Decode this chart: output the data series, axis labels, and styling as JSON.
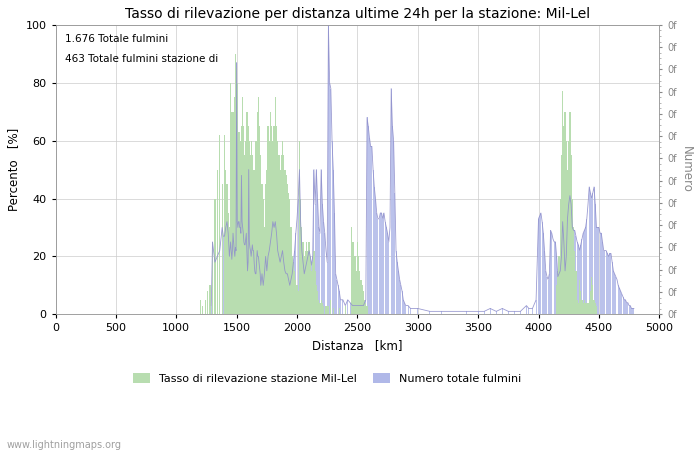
{
  "title": "Tasso di rilevazione per distanza ultime 24h per la stazione: Mil-Lel",
  "xlabel": "Distanza   [km]",
  "ylabel_left": "Percento   [%]",
  "ylabel_right": "Numero",
  "annotation_line1": "1.676 Totale fulmini",
  "annotation_line2": "463 Totale fulmini stazione di",
  "watermark": "www.lightningmaps.org",
  "xlim": [
    0,
    5000
  ],
  "ylim_left": [
    0,
    100
  ],
  "xticks": [
    0,
    500,
    1000,
    1500,
    2000,
    2500,
    3000,
    3500,
    4000,
    4500,
    5000
  ],
  "yticks_left": [
    0,
    20,
    40,
    60,
    80,
    100
  ],
  "legend_green": "Tasso di rilevazione stazione Mil-Lel",
  "legend_blue": "Numero totale fulmini",
  "green_color": "#b8ddb0",
  "blue_color": "#b0b8e8",
  "blue_line_color": "#9090cc",
  "background_color": "#ffffff",
  "grid_color": "#cccccc",
  "right_ytick_labels": [
    "0f",
    "0f",
    "0f",
    "0f",
    "0f",
    "0f",
    "0f",
    "0f",
    "0f",
    "0f",
    "0f",
    "0f",
    "0f",
    "0f"
  ],
  "green_bars": [
    [
      1200,
      5
    ],
    [
      1220,
      3
    ],
    [
      1240,
      5
    ],
    [
      1260,
      8
    ],
    [
      1280,
      10
    ],
    [
      1300,
      25
    ],
    [
      1320,
      40
    ],
    [
      1340,
      50
    ],
    [
      1360,
      62
    ],
    [
      1380,
      45
    ],
    [
      1400,
      62
    ],
    [
      1410,
      50
    ],
    [
      1420,
      45
    ],
    [
      1430,
      35
    ],
    [
      1440,
      30
    ],
    [
      1450,
      80
    ],
    [
      1460,
      70
    ],
    [
      1470,
      70
    ],
    [
      1480,
      75
    ],
    [
      1490,
      90
    ],
    [
      1495,
      85
    ],
    [
      1500,
      85
    ],
    [
      1505,
      80
    ],
    [
      1510,
      75
    ],
    [
      1515,
      63
    ],
    [
      1520,
      60
    ],
    [
      1525,
      63
    ],
    [
      1530,
      60
    ],
    [
      1535,
      55
    ],
    [
      1540,
      63
    ],
    [
      1545,
      65
    ],
    [
      1550,
      75
    ],
    [
      1555,
      65
    ],
    [
      1560,
      60
    ],
    [
      1565,
      55
    ],
    [
      1570,
      55
    ],
    [
      1575,
      60
    ],
    [
      1580,
      65
    ],
    [
      1585,
      70
    ],
    [
      1590,
      70
    ],
    [
      1595,
      65
    ],
    [
      1600,
      65
    ],
    [
      1605,
      60
    ],
    [
      1610,
      50
    ],
    [
      1615,
      55
    ],
    [
      1620,
      60
    ],
    [
      1625,
      55
    ],
    [
      1630,
      55
    ],
    [
      1635,
      50
    ],
    [
      1640,
      45
    ],
    [
      1645,
      48
    ],
    [
      1650,
      50
    ],
    [
      1655,
      55
    ],
    [
      1660,
      60
    ],
    [
      1665,
      55
    ],
    [
      1670,
      70
    ],
    [
      1675,
      65
    ],
    [
      1680,
      75
    ],
    [
      1685,
      65
    ],
    [
      1690,
      60
    ],
    [
      1695,
      55
    ],
    [
      1700,
      50
    ],
    [
      1710,
      45
    ],
    [
      1720,
      40
    ],
    [
      1730,
      30
    ],
    [
      1740,
      45
    ],
    [
      1750,
      50
    ],
    [
      1760,
      65
    ],
    [
      1770,
      60
    ],
    [
      1780,
      70
    ],
    [
      1790,
      65
    ],
    [
      1800,
      60
    ],
    [
      1810,
      65
    ],
    [
      1820,
      75
    ],
    [
      1830,
      65
    ],
    [
      1840,
      60
    ],
    [
      1850,
      55
    ],
    [
      1860,
      50
    ],
    [
      1870,
      55
    ],
    [
      1880,
      60
    ],
    [
      1890,
      55
    ],
    [
      1900,
      50
    ],
    [
      1910,
      48
    ],
    [
      1920,
      45
    ],
    [
      1930,
      42
    ],
    [
      1940,
      40
    ],
    [
      1950,
      30
    ],
    [
      1960,
      20
    ],
    [
      1970,
      18
    ],
    [
      1980,
      15
    ],
    [
      1990,
      12
    ],
    [
      2000,
      10
    ],
    [
      2010,
      8
    ],
    [
      2020,
      60
    ],
    [
      2030,
      40
    ],
    [
      2040,
      30
    ],
    [
      2050,
      25
    ],
    [
      2060,
      20
    ],
    [
      2070,
      22
    ],
    [
      2080,
      25
    ],
    [
      2090,
      22
    ],
    [
      2100,
      25
    ],
    [
      2110,
      20
    ],
    [
      2120,
      15
    ],
    [
      2130,
      18
    ],
    [
      2140,
      22
    ],
    [
      2150,
      15
    ],
    [
      2160,
      10
    ],
    [
      2170,
      8
    ],
    [
      2180,
      5
    ],
    [
      2190,
      4
    ],
    [
      2200,
      5
    ],
    [
      2210,
      4
    ],
    [
      2220,
      3
    ],
    [
      2240,
      3
    ],
    [
      2250,
      3
    ],
    [
      2260,
      3
    ],
    [
      2280,
      5
    ],
    [
      2300,
      2
    ],
    [
      2350,
      2
    ],
    [
      2400,
      3
    ],
    [
      2450,
      30
    ],
    [
      2460,
      25
    ],
    [
      2470,
      25
    ],
    [
      2480,
      20
    ],
    [
      2490,
      15
    ],
    [
      2500,
      25
    ],
    [
      2510,
      20
    ],
    [
      2520,
      15
    ],
    [
      2530,
      12
    ],
    [
      2540,
      10
    ],
    [
      2550,
      8
    ],
    [
      2560,
      5
    ],
    [
      2570,
      4
    ],
    [
      2580,
      3
    ],
    [
      4150,
      10
    ],
    [
      4160,
      15
    ],
    [
      4170,
      20
    ],
    [
      4180,
      40
    ],
    [
      4190,
      55
    ],
    [
      4200,
      77
    ],
    [
      4210,
      65
    ],
    [
      4220,
      70
    ],
    [
      4230,
      60
    ],
    [
      4240,
      50
    ],
    [
      4250,
      60
    ],
    [
      4260,
      70
    ],
    [
      4270,
      55
    ],
    [
      4280,
      40
    ],
    [
      4290,
      30
    ],
    [
      4300,
      22
    ],
    [
      4310,
      15
    ],
    [
      4320,
      5
    ],
    [
      4330,
      4
    ],
    [
      4340,
      12
    ],
    [
      4350,
      8
    ],
    [
      4360,
      5
    ],
    [
      4370,
      4
    ],
    [
      4380,
      5
    ],
    [
      4390,
      4
    ],
    [
      4400,
      4
    ],
    [
      4410,
      4
    ],
    [
      4420,
      5
    ],
    [
      4430,
      8
    ],
    [
      4440,
      13
    ],
    [
      4450,
      10
    ],
    [
      4460,
      5
    ],
    [
      4470,
      4
    ],
    [
      4480,
      3
    ]
  ],
  "blue_bars": [
    [
      1290,
      3
    ],
    [
      1300,
      25
    ],
    [
      1320,
      18
    ],
    [
      1340,
      20
    ],
    [
      1360,
      22
    ],
    [
      1380,
      30
    ],
    [
      1390,
      27
    ],
    [
      1400,
      27
    ],
    [
      1410,
      30
    ],
    [
      1420,
      32
    ],
    [
      1430,
      28
    ],
    [
      1440,
      20
    ],
    [
      1450,
      25
    ],
    [
      1460,
      19
    ],
    [
      1465,
      22
    ],
    [
      1470,
      28
    ],
    [
      1475,
      25
    ],
    [
      1480,
      22
    ],
    [
      1485,
      20
    ],
    [
      1490,
      23
    ],
    [
      1495,
      22
    ],
    [
      1500,
      87
    ],
    [
      1505,
      32
    ],
    [
      1510,
      30
    ],
    [
      1515,
      32
    ],
    [
      1520,
      32
    ],
    [
      1525,
      30
    ],
    [
      1530,
      30
    ],
    [
      1535,
      28
    ],
    [
      1540,
      48
    ],
    [
      1545,
      32
    ],
    [
      1550,
      30
    ],
    [
      1555,
      28
    ],
    [
      1560,
      25
    ],
    [
      1565,
      24
    ],
    [
      1570,
      24
    ],
    [
      1575,
      26
    ],
    [
      1580,
      28
    ],
    [
      1585,
      22
    ],
    [
      1590,
      15
    ],
    [
      1595,
      18
    ],
    [
      1600,
      50
    ],
    [
      1605,
      25
    ],
    [
      1610,
      23
    ],
    [
      1615,
      22
    ],
    [
      1620,
      20
    ],
    [
      1625,
      22
    ],
    [
      1630,
      24
    ],
    [
      1635,
      22
    ],
    [
      1640,
      22
    ],
    [
      1645,
      18
    ],
    [
      1650,
      15
    ],
    [
      1655,
      14
    ],
    [
      1660,
      14
    ],
    [
      1665,
      18
    ],
    [
      1670,
      22
    ],
    [
      1675,
      20
    ],
    [
      1680,
      20
    ],
    [
      1685,
      18
    ],
    [
      1690,
      16
    ],
    [
      1695,
      14
    ],
    [
      1700,
      10
    ],
    [
      1710,
      14
    ],
    [
      1720,
      10
    ],
    [
      1730,
      14
    ],
    [
      1740,
      20
    ],
    [
      1750,
      15
    ],
    [
      1760,
      20
    ],
    [
      1770,
      22
    ],
    [
      1780,
      25
    ],
    [
      1790,
      28
    ],
    [
      1800,
      32
    ],
    [
      1810,
      30
    ],
    [
      1820,
      32
    ],
    [
      1830,
      28
    ],
    [
      1840,
      22
    ],
    [
      1850,
      20
    ],
    [
      1860,
      18
    ],
    [
      1870,
      20
    ],
    [
      1880,
      22
    ],
    [
      1890,
      18
    ],
    [
      1900,
      15
    ],
    [
      1910,
      14
    ],
    [
      1920,
      14
    ],
    [
      1930,
      12
    ],
    [
      1940,
      10
    ],
    [
      1950,
      12
    ],
    [
      1960,
      14
    ],
    [
      1970,
      18
    ],
    [
      1980,
      22
    ],
    [
      1990,
      28
    ],
    [
      2000,
      33
    ],
    [
      2010,
      40
    ],
    [
      2020,
      50
    ],
    [
      2030,
      32
    ],
    [
      2040,
      22
    ],
    [
      2050,
      18
    ],
    [
      2060,
      14
    ],
    [
      2070,
      16
    ],
    [
      2080,
      18
    ],
    [
      2090,
      20
    ],
    [
      2100,
      22
    ],
    [
      2110,
      20
    ],
    [
      2120,
      17
    ],
    [
      2130,
      20
    ],
    [
      2140,
      50
    ],
    [
      2150,
      38
    ],
    [
      2160,
      50
    ],
    [
      2170,
      40
    ],
    [
      2180,
      30
    ],
    [
      2190,
      28
    ],
    [
      2200,
      50
    ],
    [
      2210,
      38
    ],
    [
      2220,
      32
    ],
    [
      2230,
      28
    ],
    [
      2240,
      22
    ],
    [
      2250,
      18
    ],
    [
      2260,
      100
    ],
    [
      2270,
      80
    ],
    [
      2280,
      78
    ],
    [
      2290,
      60
    ],
    [
      2300,
      50
    ],
    [
      2310,
      35
    ],
    [
      2320,
      14
    ],
    [
      2330,
      12
    ],
    [
      2340,
      10
    ],
    [
      2350,
      8
    ],
    [
      2360,
      5
    ],
    [
      2380,
      5
    ],
    [
      2400,
      3
    ],
    [
      2420,
      5
    ],
    [
      2440,
      4
    ],
    [
      2460,
      3
    ],
    [
      2480,
      3
    ],
    [
      2500,
      3
    ],
    [
      2550,
      3
    ],
    [
      2570,
      5
    ],
    [
      2580,
      68
    ],
    [
      2590,
      65
    ],
    [
      2600,
      61
    ],
    [
      2610,
      58
    ],
    [
      2620,
      58
    ],
    [
      2630,
      50
    ],
    [
      2640,
      44
    ],
    [
      2650,
      40
    ],
    [
      2660,
      35
    ],
    [
      2670,
      33
    ],
    [
      2680,
      33
    ],
    [
      2690,
      35
    ],
    [
      2700,
      35
    ],
    [
      2710,
      33
    ],
    [
      2720,
      35
    ],
    [
      2730,
      32
    ],
    [
      2740,
      30
    ],
    [
      2750,
      28
    ],
    [
      2760,
      25
    ],
    [
      2770,
      30
    ],
    [
      2780,
      78
    ],
    [
      2790,
      65
    ],
    [
      2800,
      60
    ],
    [
      2810,
      42
    ],
    [
      2820,
      22
    ],
    [
      2830,
      18
    ],
    [
      2840,
      15
    ],
    [
      2850,
      12
    ],
    [
      2860,
      10
    ],
    [
      2870,
      8
    ],
    [
      2880,
      5
    ],
    [
      2890,
      4
    ],
    [
      2900,
      3
    ],
    [
      2920,
      3
    ],
    [
      2940,
      2
    ],
    [
      3000,
      2
    ],
    [
      3100,
      1
    ],
    [
      3200,
      1
    ],
    [
      3300,
      1
    ],
    [
      3400,
      1
    ],
    [
      3500,
      1
    ],
    [
      3550,
      1
    ],
    [
      3600,
      2
    ],
    [
      3650,
      1
    ],
    [
      3700,
      2
    ],
    [
      3750,
      1
    ],
    [
      3800,
      1
    ],
    [
      3850,
      1
    ],
    [
      3900,
      3
    ],
    [
      3920,
      2
    ],
    [
      3950,
      2
    ],
    [
      3980,
      5
    ],
    [
      4000,
      33
    ],
    [
      4010,
      34
    ],
    [
      4020,
      35
    ],
    [
      4030,
      32
    ],
    [
      4040,
      28
    ],
    [
      4050,
      22
    ],
    [
      4060,
      15
    ],
    [
      4070,
      13
    ],
    [
      4080,
      12
    ],
    [
      4090,
      14
    ],
    [
      4100,
      29
    ],
    [
      4110,
      28
    ],
    [
      4120,
      26
    ],
    [
      4130,
      25
    ],
    [
      4140,
      25
    ],
    [
      4150,
      20
    ],
    [
      4160,
      13
    ],
    [
      4170,
      14
    ],
    [
      4180,
      15
    ],
    [
      4190,
      20
    ],
    [
      4200,
      32
    ],
    [
      4210,
      25
    ],
    [
      4220,
      15
    ],
    [
      4230,
      20
    ],
    [
      4240,
      33
    ],
    [
      4250,
      38
    ],
    [
      4260,
      41
    ],
    [
      4270,
      38
    ],
    [
      4280,
      30
    ],
    [
      4290,
      29
    ],
    [
      4300,
      29
    ],
    [
      4310,
      27
    ],
    [
      4320,
      25
    ],
    [
      4330,
      24
    ],
    [
      4340,
      22
    ],
    [
      4350,
      24
    ],
    [
      4360,
      26
    ],
    [
      4370,
      28
    ],
    [
      4380,
      29
    ],
    [
      4390,
      30
    ],
    [
      4400,
      33
    ],
    [
      4410,
      38
    ],
    [
      4420,
      44
    ],
    [
      4430,
      42
    ],
    [
      4440,
      40
    ],
    [
      4450,
      42
    ],
    [
      4460,
      44
    ],
    [
      4470,
      38
    ],
    [
      4480,
      30
    ],
    [
      4490,
      30
    ],
    [
      4500,
      30
    ],
    [
      4510,
      28
    ],
    [
      4520,
      28
    ],
    [
      4530,
      25
    ],
    [
      4540,
      22
    ],
    [
      4550,
      22
    ],
    [
      4560,
      22
    ],
    [
      4570,
      21
    ],
    [
      4580,
      20
    ],
    [
      4590,
      21
    ],
    [
      4600,
      21
    ],
    [
      4610,
      18
    ],
    [
      4620,
      15
    ],
    [
      4630,
      14
    ],
    [
      4640,
      13
    ],
    [
      4650,
      12
    ],
    [
      4660,
      10
    ],
    [
      4670,
      9
    ],
    [
      4680,
      8
    ],
    [
      4690,
      7
    ],
    [
      4700,
      6
    ],
    [
      4710,
      5
    ],
    [
      4720,
      5
    ],
    [
      4730,
      4
    ],
    [
      4740,
      4
    ],
    [
      4750,
      3
    ],
    [
      4760,
      3
    ],
    [
      4770,
      2
    ],
    [
      4780,
      2
    ],
    [
      4790,
      2
    ]
  ]
}
